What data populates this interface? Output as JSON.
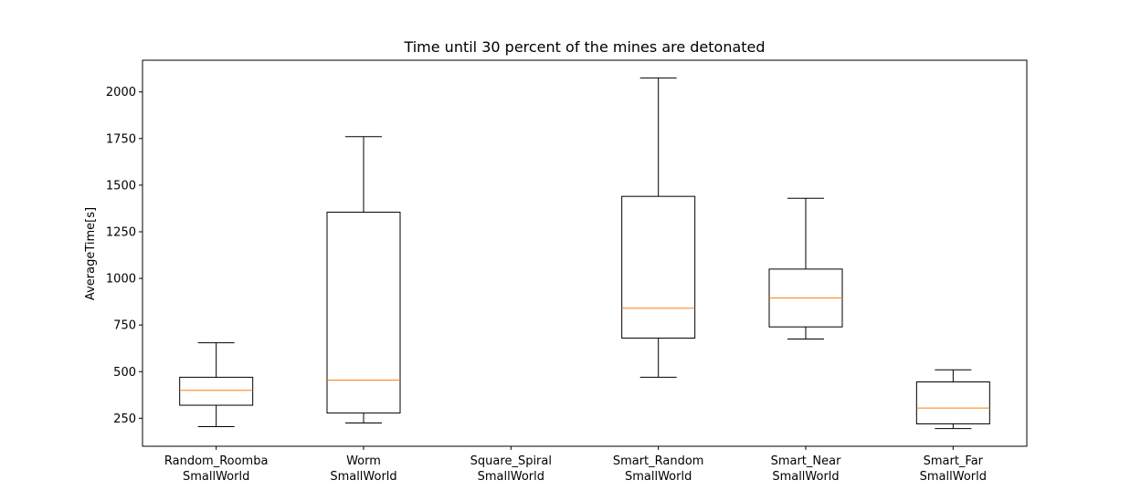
{
  "chart_data": {
    "type": "box",
    "title": "Time until 30 percent of the mines are detonated",
    "ylabel": "AverageTime[s]",
    "xlabel": "",
    "ylim": [
      100,
      2170
    ],
    "yticks": [
      250,
      500,
      750,
      1000,
      1250,
      1500,
      1750,
      2000
    ],
    "grid": false,
    "median_color": "#ff7f0e",
    "box_color": "#000000",
    "categories": [
      [
        "Random_Roomba",
        "SmallWorld"
      ],
      [
        "Worm",
        "SmallWorld"
      ],
      [
        "Square_Spiral",
        "SmallWorld"
      ],
      [
        "Smart_Random",
        "SmallWorld"
      ],
      [
        "Smart_Near",
        "SmallWorld"
      ],
      [
        "Smart_Far",
        "SmallWorld"
      ]
    ],
    "boxes": [
      {
        "whislo": 205,
        "q1": 320,
        "med": 400,
        "q3": 470,
        "whishi": 655
      },
      {
        "whislo": 225,
        "q1": 278,
        "med": 455,
        "q3": 1355,
        "whishi": 1760
      },
      null,
      {
        "whislo": 470,
        "q1": 680,
        "med": 840,
        "q3": 1440,
        "whishi": 2075
      },
      {
        "whislo": 675,
        "q1": 740,
        "med": 895,
        "q3": 1050,
        "whishi": 1430
      },
      {
        "whislo": 195,
        "q1": 220,
        "med": 305,
        "q3": 445,
        "whishi": 510
      }
    ]
  }
}
